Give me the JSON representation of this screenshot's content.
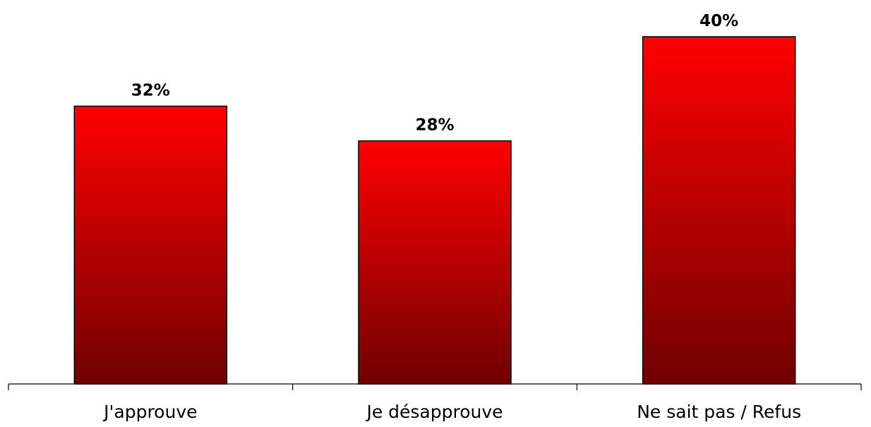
{
  "chart_data": {
    "type": "bar",
    "categories": [
      "J'approuve",
      "Je désapprouve",
      "Ne sait pas / Refus"
    ],
    "values": [
      32,
      28,
      40
    ],
    "data_labels": [
      "32%",
      "28%",
      "40%"
    ],
    "title": "",
    "xlabel": "",
    "ylabel": "",
    "ylim": [
      0,
      40
    ],
    "grid": false,
    "legend": "none",
    "colors": {
      "bar_top": "#ff0000",
      "bar_bottom": "#700000",
      "bar_border": "#000000"
    }
  }
}
